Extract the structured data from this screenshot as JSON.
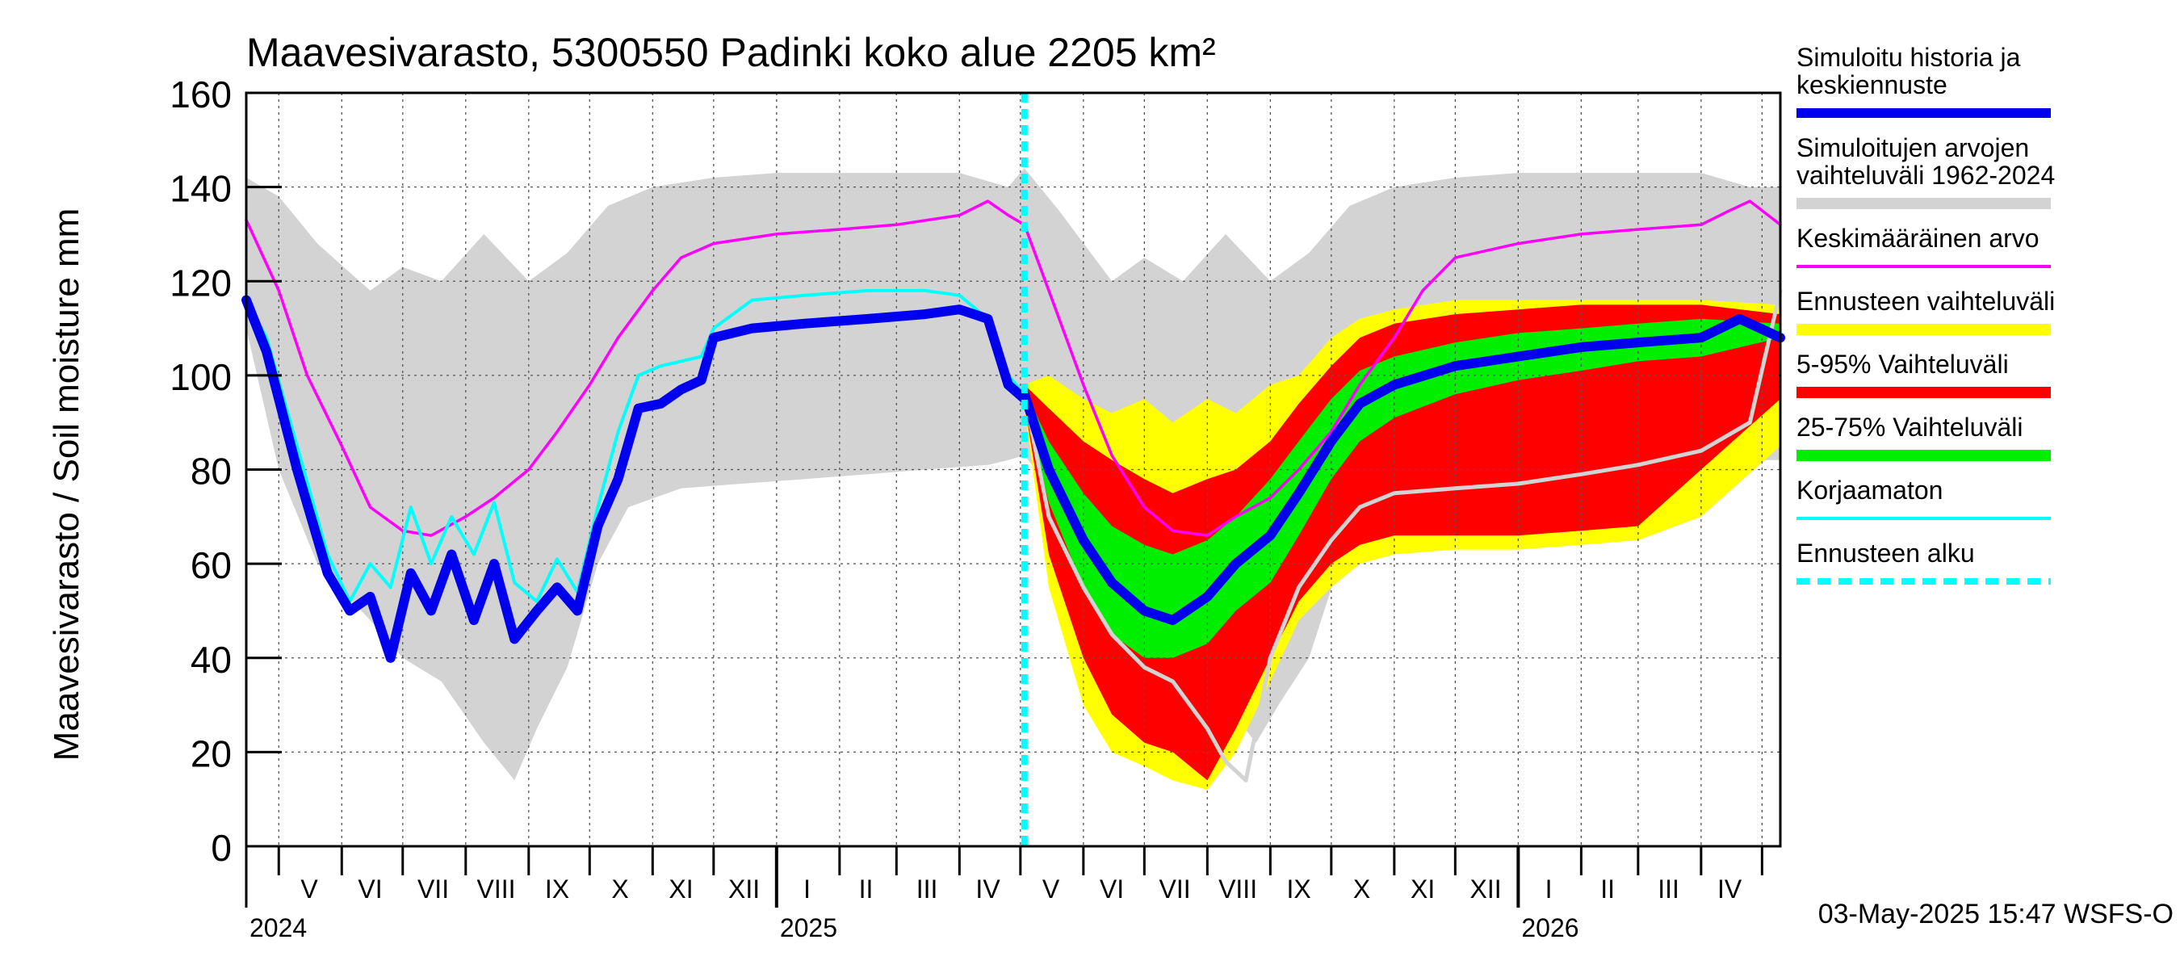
{
  "chart_data": {
    "type": "area",
    "title": "Maavesivarasto, 5300550 Padinki koko alue 2205 km²",
    "ylabel": "Maavesivarasto / Soil moisture   mm",
    "ylim": [
      0,
      160
    ],
    "yticks": [
      0,
      20,
      40,
      60,
      80,
      100,
      120,
      140,
      160
    ],
    "x_range": [
      "2024-04-15",
      "2026-05-10"
    ],
    "forecast_start": "2025-05-03",
    "grid": true,
    "legend_position": "right",
    "months": [
      {
        "label": "V",
        "date": "2024-05-16"
      },
      {
        "label": "VI",
        "date": "2024-06-15"
      },
      {
        "label": "VII",
        "date": "2024-07-16"
      },
      {
        "label": "VIII",
        "date": "2024-08-16"
      },
      {
        "label": "IX",
        "date": "2024-09-15"
      },
      {
        "label": "X",
        "date": "2024-10-16"
      },
      {
        "label": "XI",
        "date": "2024-11-15"
      },
      {
        "label": "XII",
        "date": "2024-12-16"
      },
      {
        "label": "I",
        "date": "2025-01-16"
      },
      {
        "label": "II",
        "date": "2025-02-14"
      },
      {
        "label": "III",
        "date": "2025-03-16"
      },
      {
        "label": "IV",
        "date": "2025-04-15"
      },
      {
        "label": "V",
        "date": "2025-05-16"
      },
      {
        "label": "VI",
        "date": "2025-06-15"
      },
      {
        "label": "VII",
        "date": "2025-07-16"
      },
      {
        "label": "VIII",
        "date": "2025-08-16"
      },
      {
        "label": "IX",
        "date": "2025-09-15"
      },
      {
        "label": "X",
        "date": "2025-10-16"
      },
      {
        "label": "XI",
        "date": "2025-11-15"
      },
      {
        "label": "XII",
        "date": "2025-12-16"
      },
      {
        "label": "I",
        "date": "2026-01-16"
      },
      {
        "label": "II",
        "date": "2026-02-14"
      },
      {
        "label": "III",
        "date": "2026-03-16"
      },
      {
        "label": "IV",
        "date": "2026-04-15"
      }
    ],
    "years": [
      {
        "label": "2024",
        "date": "2024-04-15"
      },
      {
        "label": "2025",
        "date": "2025-01-01"
      },
      {
        "label": "2026",
        "date": "2026-01-01"
      }
    ],
    "footer": "03-May-2025 15:47 WSFS-O",
    "colors": {
      "history": "#0000ee",
      "range": "#d3d3d3",
      "mean": "#ff00ff",
      "forecast_range": "#ffff00",
      "p5_95": "#ff0000",
      "p25_75": "#00ee00",
      "uncorrected": "#00ffff",
      "forecast_start": "#00ffff",
      "forecast_gray": "#d3d3d3"
    },
    "legend": [
      {
        "label": "Simuloitu historia ja keskiennuste",
        "lines": [
          "Simuloitu historia ja",
          "keskiennuste"
        ],
        "color": "#0000ee",
        "style": "thick"
      },
      {
        "label": "Simuloitujen arvojen vaihteluväli 1962-2024",
        "lines": [
          "Simuloitujen arvojen",
          "vaihteluväli 1962-2024"
        ],
        "color": "#d3d3d3",
        "style": "band"
      },
      {
        "label": "Keskimääräinen arvo",
        "lines": [
          "Keskimääräinen arvo"
        ],
        "color": "#ff00ff",
        "style": "thin"
      },
      {
        "label": "Ennusteen vaihteluväli",
        "lines": [
          "Ennusteen vaihteluväli"
        ],
        "color": "#ffff00",
        "style": "band"
      },
      {
        "label": "5-95% Vaihteluväli",
        "lines": [
          "5-95% Vaihteluväli"
        ],
        "color": "#ff0000",
        "style": "band"
      },
      {
        "label": "25-75% Vaihteluväli",
        "lines": [
          "25-75% Vaihteluväli"
        ],
        "color": "#00ee00",
        "style": "band"
      },
      {
        "label": "Korjaamaton",
        "lines": [
          "Korjaamaton"
        ],
        "color": "#00ffff",
        "style": "thin"
      },
      {
        "label": "Ennusteen alku",
        "lines": [
          "Ennusteen alku"
        ],
        "color": "#00ffff",
        "style": "dashed"
      }
    ],
    "series": {
      "range_upper": {
        "x": [
          "2024-04-15",
          "2024-05-01",
          "2024-05-20",
          "2024-06-15",
          "2024-07-01",
          "2024-07-20",
          "2024-08-10",
          "2024-09-01",
          "2024-09-20",
          "2024-10-10",
          "2024-11-01",
          "2024-12-01",
          "2025-01-01",
          "2025-02-01",
          "2025-03-01",
          "2025-04-01",
          "2025-04-25",
          "2025-05-03",
          "2025-05-20",
          "2025-06-15",
          "2025-07-01",
          "2025-07-20",
          "2025-08-10",
          "2025-09-01",
          "2025-09-20",
          "2025-10-10",
          "2025-11-01",
          "2025-12-01",
          "2026-01-01",
          "2026-02-01",
          "2026-03-01",
          "2026-04-01",
          "2026-04-25",
          "2026-05-10"
        ],
        "y": [
          142,
          138,
          128,
          118,
          123,
          120,
          130,
          120,
          126,
          136,
          140,
          142,
          143,
          143,
          143,
          143,
          140,
          144,
          135,
          120,
          125,
          120,
          130,
          120,
          126,
          136,
          140,
          142,
          143,
          143,
          143,
          143,
          140,
          140
        ]
      },
      "range_lower": {
        "x": [
          "2024-04-15",
          "2024-05-01",
          "2024-05-20",
          "2024-06-15",
          "2024-07-01",
          "2024-07-20",
          "2024-08-10",
          "2024-08-25",
          "2024-09-05",
          "2024-09-20",
          "2024-10-05",
          "2024-10-20",
          "2024-11-15",
          "2024-12-15",
          "2025-01-15",
          "2025-02-15",
          "2025-03-15",
          "2025-04-15",
          "2025-04-25",
          "2025-05-03",
          "2025-05-20",
          "2025-06-15",
          "2025-07-01",
          "2025-07-20",
          "2025-08-10",
          "2025-08-25",
          "2025-09-05",
          "2025-09-20",
          "2025-10-05",
          "2025-10-20",
          "2025-11-15",
          "2025-12-15",
          "2026-01-15",
          "2026-02-15",
          "2026-03-15",
          "2026-04-15",
          "2026-04-25",
          "2026-05-10"
        ],
        "y": [
          110,
          80,
          60,
          48,
          40,
          35,
          22,
          14,
          25,
          38,
          60,
          72,
          76,
          77,
          78,
          79,
          80,
          81,
          82,
          83,
          74,
          52,
          45,
          40,
          30,
          22,
          30,
          40,
          60,
          72,
          76,
          77,
          78,
          79,
          80,
          81,
          82,
          82
        ]
      },
      "mean": {
        "x": [
          "2024-04-15",
          "2024-05-01",
          "2024-05-15",
          "2024-06-01",
          "2024-06-15",
          "2024-07-01",
          "2024-07-15",
          "2024-08-01",
          "2024-08-15",
          "2024-09-01",
          "2024-09-15",
          "2024-10-01",
          "2024-10-15",
          "2024-11-01",
          "2024-11-15",
          "2024-12-01",
          "2025-01-01",
          "2025-02-01",
          "2025-03-01",
          "2025-04-01",
          "2025-04-15",
          "2025-04-25",
          "2025-05-03",
          "2025-05-15",
          "2025-06-01",
          "2025-06-15",
          "2025-07-01",
          "2025-07-15",
          "2025-08-01",
          "2025-08-15",
          "2025-09-01",
          "2025-09-15",
          "2025-10-01",
          "2025-10-15",
          "2025-11-01",
          "2025-11-15",
          "2025-12-01",
          "2026-01-01",
          "2026-02-01",
          "2026-03-01",
          "2026-04-01",
          "2026-04-15",
          "2026-04-25",
          "2026-05-10"
        ],
        "y": [
          133,
          118,
          100,
          85,
          72,
          67,
          66,
          70,
          74,
          80,
          88,
          98,
          108,
          118,
          125,
          128,
          130,
          131,
          132,
          134,
          137,
          134,
          132,
          118,
          98,
          83,
          72,
          67,
          66,
          70,
          74,
          80,
          88,
          98,
          108,
          118,
          125,
          128,
          130,
          131,
          132,
          135,
          137,
          132
        ]
      },
      "uncorrected": {
        "x": [
          "2024-04-15",
          "2024-04-25",
          "2024-05-10",
          "2024-05-25",
          "2024-06-05",
          "2024-06-15",
          "2024-06-25",
          "2024-07-05",
          "2024-07-15",
          "2024-07-25",
          "2024-08-05",
          "2024-08-15",
          "2024-08-25",
          "2024-09-05",
          "2024-09-15",
          "2024-09-25",
          "2024-10-05",
          "2024-10-15",
          "2024-10-25",
          "2024-11-05",
          "2024-11-15",
          "2024-11-25",
          "2024-12-01",
          "2024-12-20",
          "2025-01-15",
          "2025-02-15",
          "2025-03-15",
          "2025-04-01",
          "2025-04-15",
          "2025-04-25",
          "2025-05-03"
        ],
        "y": [
          116,
          108,
          85,
          62,
          52,
          60,
          55,
          72,
          60,
          70,
          62,
          73,
          56,
          52,
          61,
          54,
          72,
          88,
          100,
          102,
          103,
          104,
          110,
          116,
          117,
          118,
          118,
          117,
          112,
          100,
          96
        ]
      },
      "history": {
        "x": [
          "2024-04-15",
          "2024-04-25",
          "2024-05-10",
          "2024-05-25",
          "2024-06-05",
          "2024-06-15",
          "2024-06-25",
          "2024-07-05",
          "2024-07-15",
          "2024-07-25",
          "2024-08-05",
          "2024-08-15",
          "2024-08-25",
          "2024-09-05",
          "2024-09-15",
          "2024-09-25",
          "2024-10-05",
          "2024-10-15",
          "2024-10-25",
          "2024-11-05",
          "2024-11-15",
          "2024-11-25",
          "2024-12-01",
          "2024-12-20",
          "2025-01-15",
          "2025-02-15",
          "2025-03-15",
          "2025-04-01",
          "2025-04-15",
          "2025-04-25",
          "2025-05-03"
        ],
        "y": [
          116,
          105,
          80,
          58,
          50,
          53,
          40,
          58,
          50,
          62,
          48,
          60,
          44,
          50,
          55,
          50,
          68,
          78,
          93,
          94,
          97,
          99,
          108,
          110,
          111,
          112,
          113,
          114,
          112,
          98,
          95
        ]
      },
      "fc_env_upper": {
        "x": [
          "2025-05-03",
          "2025-05-15",
          "2025-06-01",
          "2025-06-15",
          "2025-07-01",
          "2025-07-15",
          "2025-08-01",
          "2025-08-15",
          "2025-09-01",
          "2025-09-15",
          "2025-10-01",
          "2025-10-15",
          "2025-11-01",
          "2025-12-01",
          "2026-01-01",
          "2026-02-01",
          "2026-03-01",
          "2026-04-01",
          "2026-05-10"
        ],
        "y": [
          98,
          100,
          95,
          92,
          95,
          90,
          95,
          92,
          98,
          100,
          108,
          112,
          114,
          116,
          116,
          116,
          116,
          116,
          115
        ]
      },
      "p95": {
        "x": [
          "2025-05-03",
          "2025-05-15",
          "2025-06-01",
          "2025-06-15",
          "2025-07-01",
          "2025-07-15",
          "2025-08-01",
          "2025-08-15",
          "2025-09-01",
          "2025-09-15",
          "2025-10-01",
          "2025-10-15",
          "2025-11-01",
          "2025-12-01",
          "2026-01-01",
          "2026-02-01",
          "2026-03-01",
          "2026-04-01",
          "2026-05-10"
        ],
        "y": [
          98,
          93,
          86,
          82,
          78,
          75,
          78,
          80,
          86,
          94,
          102,
          108,
          111,
          113,
          114,
          115,
          115,
          115,
          113
        ]
      },
      "p75": {
        "x": [
          "2025-05-03",
          "2025-05-15",
          "2025-06-01",
          "2025-06-15",
          "2025-07-01",
          "2025-07-15",
          "2025-08-01",
          "2025-08-15",
          "2025-09-01",
          "2025-09-15",
          "2025-10-01",
          "2025-10-15",
          "2025-11-01",
          "2025-12-01",
          "2026-01-01",
          "2026-02-01",
          "2026-03-01",
          "2026-04-01",
          "2026-05-10"
        ],
        "y": [
          97,
          86,
          75,
          68,
          64,
          62,
          65,
          70,
          78,
          86,
          95,
          101,
          104,
          107,
          109,
          110,
          111,
          112,
          111
        ]
      },
      "median": {
        "x": [
          "2025-05-03",
          "2025-05-15",
          "2025-06-01",
          "2025-06-15",
          "2025-07-01",
          "2025-07-15",
          "2025-08-01",
          "2025-08-15",
          "2025-09-01",
          "2025-09-15",
          "2025-10-01",
          "2025-10-15",
          "2025-11-01",
          "2025-12-01",
          "2026-01-01",
          "2026-02-01",
          "2026-03-01",
          "2026-04-01",
          "2026-04-20",
          "2026-05-10"
        ],
        "y": [
          96,
          80,
          65,
          56,
          50,
          48,
          53,
          60,
          66,
          75,
          86,
          94,
          98,
          102,
          104,
          106,
          107,
          108,
          112,
          108
        ]
      },
      "p25": {
        "x": [
          "2025-05-03",
          "2025-05-15",
          "2025-06-01",
          "2025-06-15",
          "2025-07-01",
          "2025-07-15",
          "2025-08-01",
          "2025-08-15",
          "2025-09-01",
          "2025-09-15",
          "2025-10-01",
          "2025-10-15",
          "2025-11-01",
          "2025-12-01",
          "2026-01-01",
          "2026-02-01",
          "2026-03-01",
          "2026-04-01",
          "2026-05-10"
        ],
        "y": [
          95,
          73,
          55,
          45,
          40,
          40,
          43,
          50,
          56,
          66,
          78,
          86,
          91,
          96,
          99,
          101,
          103,
          104,
          108
        ]
      },
      "p5": {
        "x": [
          "2025-05-03",
          "2025-05-15",
          "2025-06-01",
          "2025-06-15",
          "2025-07-01",
          "2025-07-15",
          "2025-08-01",
          "2025-08-15",
          "2025-09-01",
          "2025-09-15",
          "2025-10-01",
          "2025-10-15",
          "2025-11-01",
          "2025-12-01",
          "2026-01-01",
          "2026-02-01",
          "2026-03-01",
          "2026-04-01",
          "2026-05-10"
        ],
        "y": [
          94,
          62,
          40,
          28,
          22,
          20,
          14,
          25,
          40,
          52,
          60,
          64,
          66,
          66,
          66,
          67,
          68,
          80,
          95
        ]
      },
      "fc_env_lower": {
        "x": [
          "2025-05-03",
          "2025-05-15",
          "2025-06-01",
          "2025-06-15",
          "2025-07-01",
          "2025-07-15",
          "2025-08-01",
          "2025-08-15",
          "2025-09-01",
          "2025-09-15",
          "2025-10-01",
          "2025-10-15",
          "2025-11-01",
          "2025-12-01",
          "2026-01-01",
          "2026-02-01",
          "2026-03-01",
          "2026-04-01",
          "2026-05-10"
        ],
        "y": [
          93,
          55,
          30,
          20,
          17,
          14,
          12,
          20,
          35,
          48,
          55,
          60,
          62,
          63,
          63,
          64,
          65,
          70,
          85
        ]
      },
      "forecast_gray": {
        "x": [
          "2025-05-03",
          "2025-05-15",
          "2025-06-01",
          "2025-06-15",
          "2025-07-01",
          "2025-07-15",
          "2025-08-01",
          "2025-08-10",
          "2025-08-20",
          "2025-09-01",
          "2025-09-15",
          "2025-10-01",
          "2025-10-15",
          "2025-11-01",
          "2025-12-01",
          "2026-01-01",
          "2026-02-01",
          "2026-03-01",
          "2026-04-01",
          "2026-04-25",
          "2026-05-10"
        ],
        "y": [
          96,
          70,
          55,
          45,
          38,
          35,
          25,
          18,
          14,
          40,
          55,
          65,
          72,
          75,
          76,
          77,
          79,
          81,
          84,
          90,
          118
        ]
      }
    }
  }
}
